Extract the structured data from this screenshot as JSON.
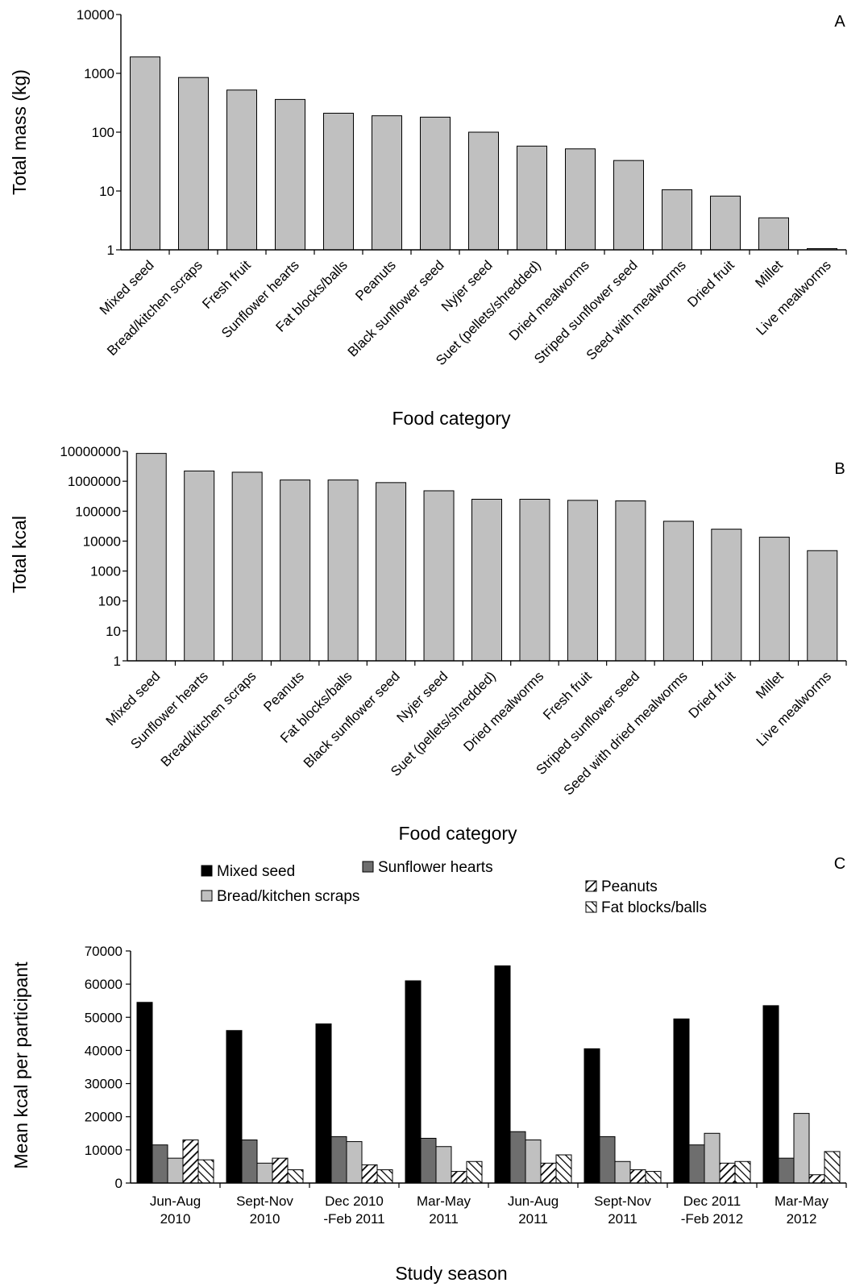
{
  "chart_data": [
    {
      "panel": "A",
      "type": "bar",
      "yscale": "log",
      "ylim": [
        1,
        10000
      ],
      "yticks": [
        "1",
        "10",
        "100",
        "1000",
        "10000"
      ],
      "ylabel": "Total mass (kg)",
      "xlabel": "Food category",
      "bar_color": "#c0c0c0",
      "categories": [
        "Mixed seed",
        "Bread/kitchen scraps",
        "Fresh fruit",
        "Sunflower hearts",
        "Fat blocks/balls",
        "Peanuts",
        "Black sunflower seed",
        "Nyjer seed",
        "Suet (pellets/shredded)",
        "Dried mealworms",
        "Striped sunflower seed",
        "Seed with mealworms",
        "Dried fruit",
        "Millet",
        "Live mealworms"
      ],
      "values": [
        1900,
        850,
        520,
        360,
        210,
        190,
        180,
        100,
        58,
        52,
        33,
        10.5,
        8.2,
        3.5,
        1.05
      ]
    },
    {
      "panel": "B",
      "type": "bar",
      "yscale": "log",
      "ylim": [
        1,
        10000000
      ],
      "yticks": [
        "1",
        "10",
        "100",
        "1000",
        "10000",
        "100000",
        "1000000",
        "10000000"
      ],
      "ylabel": "Total kcal",
      "xlabel": "Food category",
      "bar_color": "#c0c0c0",
      "categories": [
        "Mixed seed",
        "Sunflower hearts",
        "Bread/kitchen scraps",
        "Peanuts",
        "Fat blocks/balls",
        "Black sunflower seed",
        "Nyjer seed",
        "Suet (pellets/shredded)",
        "Dried mealworms",
        "Fresh fruit",
        "Striped sunflower seed",
        "Seed with dried mealworms",
        "Dried fruit",
        "Millet",
        "Live mealworms"
      ],
      "values": [
        8500000,
        2200000,
        2000000,
        1100000,
        1100000,
        900000,
        480000,
        250000,
        250000,
        230000,
        220000,
        46000,
        25000,
        13500,
        4800
      ]
    },
    {
      "panel": "C",
      "type": "bar",
      "yscale": "linear",
      "ylim": [
        0,
        70000
      ],
      "yticks": [
        "0",
        "10000",
        "20000",
        "30000",
        "40000",
        "50000",
        "60000",
        "70000"
      ],
      "ylabel": "Mean kcal per participant",
      "xlabel": "Study season",
      "categories": [
        [
          "Jun-Aug",
          "2010"
        ],
        [
          "Sept-Nov",
          "2010"
        ],
        [
          "Dec 2010",
          "-Feb 2011"
        ],
        [
          "Mar-May",
          "2011"
        ],
        [
          "Jun-Aug",
          "2011"
        ],
        [
          "Sept-Nov",
          "2011"
        ],
        [
          "Dec 2011",
          "-Feb 2012"
        ],
        [
          "Mar-May",
          "2012"
        ]
      ],
      "legend": [
        "Mixed seed",
        "Sunflower hearts",
        "Bread/kitchen scraps",
        "Peanuts",
        "Fat blocks/balls"
      ],
      "series": [
        {
          "name": "Mixed seed",
          "fill": "#000000",
          "pattern": "solid",
          "values": [
            54500,
            46000,
            48000,
            61000,
            65500,
            40500,
            49500,
            53500
          ]
        },
        {
          "name": "Sunflower hearts",
          "fill": "#6e6e6e",
          "pattern": "solid",
          "values": [
            11500,
            13000,
            14000,
            13500,
            15500,
            14000,
            11500,
            7500
          ]
        },
        {
          "name": "Bread/kitchen scraps",
          "fill": "#c0c0c0",
          "pattern": "solid",
          "values": [
            7500,
            6000,
            12500,
            11000,
            13000,
            6500,
            15000,
            21000
          ]
        },
        {
          "name": "Peanuts",
          "fill": "#ffffff",
          "pattern": "diag-right",
          "values": [
            13000,
            7500,
            5500,
            3500,
            6000,
            4000,
            6000,
            2500
          ]
        },
        {
          "name": "Fat blocks/balls",
          "fill": "#ffffff",
          "pattern": "diag-left",
          "values": [
            7000,
            4000,
            4000,
            6500,
            8500,
            3500,
            6500,
            9500
          ]
        }
      ]
    }
  ]
}
